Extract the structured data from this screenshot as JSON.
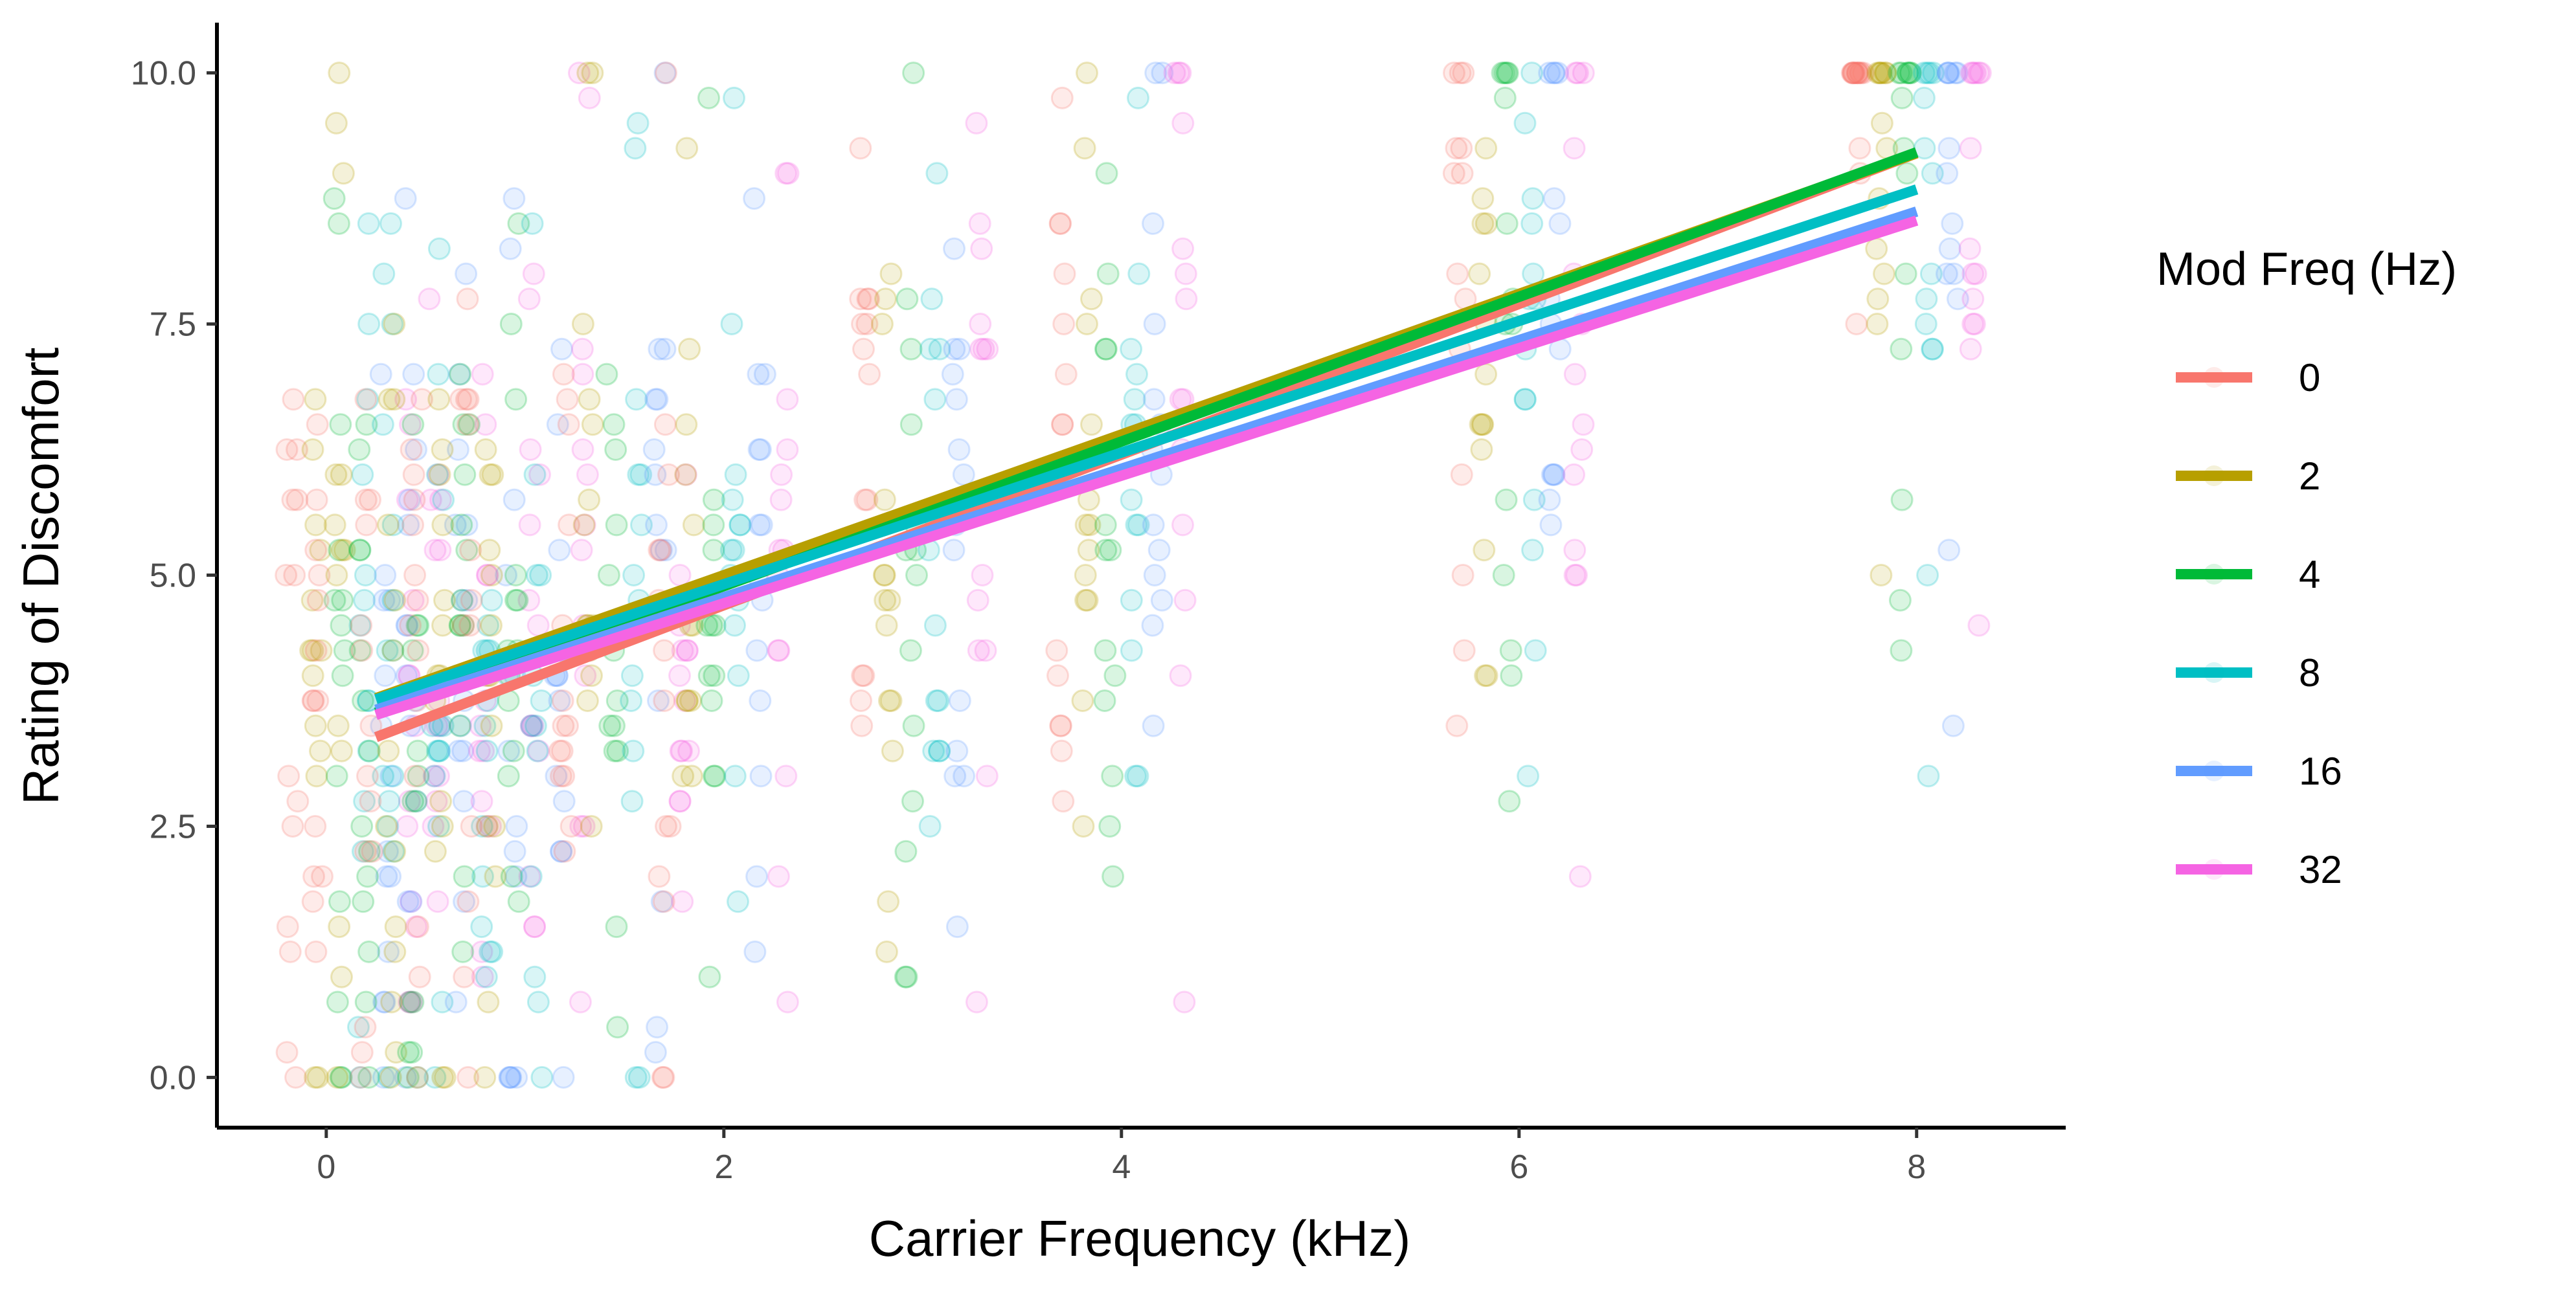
{
  "chart_data": {
    "type": "scatter",
    "xlabel": "Carrier Frequency (kHz)",
    "ylabel": "Rating of Discomfort",
    "xlim": [
      -0.55,
      8.75
    ],
    "ylim": [
      -0.5,
      10.5
    ],
    "x_ticks": [
      0,
      2,
      4,
      6,
      8
    ],
    "x_tick_labels": [
      "0",
      "2",
      "4",
      "6",
      "8"
    ],
    "y_ticks": [
      0,
      2.5,
      5,
      7.5,
      10
    ],
    "y_tick_labels": [
      "0.0",
      "2.5",
      "5.0",
      "7.5",
      "10.0"
    ],
    "grid": false,
    "legend": {
      "title": "Mod Freq (Hz)",
      "position": "right"
    },
    "carrier_levels_khz": [
      0.125,
      0.25,
      0.5,
      0.75,
      1,
      1.5,
      2,
      3,
      4,
      6,
      8
    ],
    "jitter_kHz": 0.35,
    "point_alpha": 0.15,
    "series": [
      {
        "name": "0",
        "color": "#F8766D",
        "intercept": 3.2,
        "slope": 0.75,
        "fit_x": [
          0.25,
          8.0
        ]
      },
      {
        "name": "2",
        "color": "#B79F00",
        "intercept": 3.6,
        "slope": 0.7,
        "fit_x": [
          0.25,
          8.0
        ]
      },
      {
        "name": "4",
        "color": "#00BA38",
        "intercept": 3.45,
        "slope": 0.72,
        "fit_x": [
          0.25,
          8.0
        ]
      },
      {
        "name": "8",
        "color": "#00BFC4",
        "intercept": 3.6,
        "slope": 0.655,
        "fit_x": [
          0.25,
          8.0
        ]
      },
      {
        "name": "16",
        "color": "#619CFF",
        "intercept": 3.5,
        "slope": 0.64,
        "fit_x": [
          0.25,
          8.0
        ]
      },
      {
        "name": "32",
        "color": "#F564E3",
        "intercept": 3.45,
        "slope": 0.635,
        "fit_x": [
          0.25,
          8.0
        ]
      }
    ]
  }
}
